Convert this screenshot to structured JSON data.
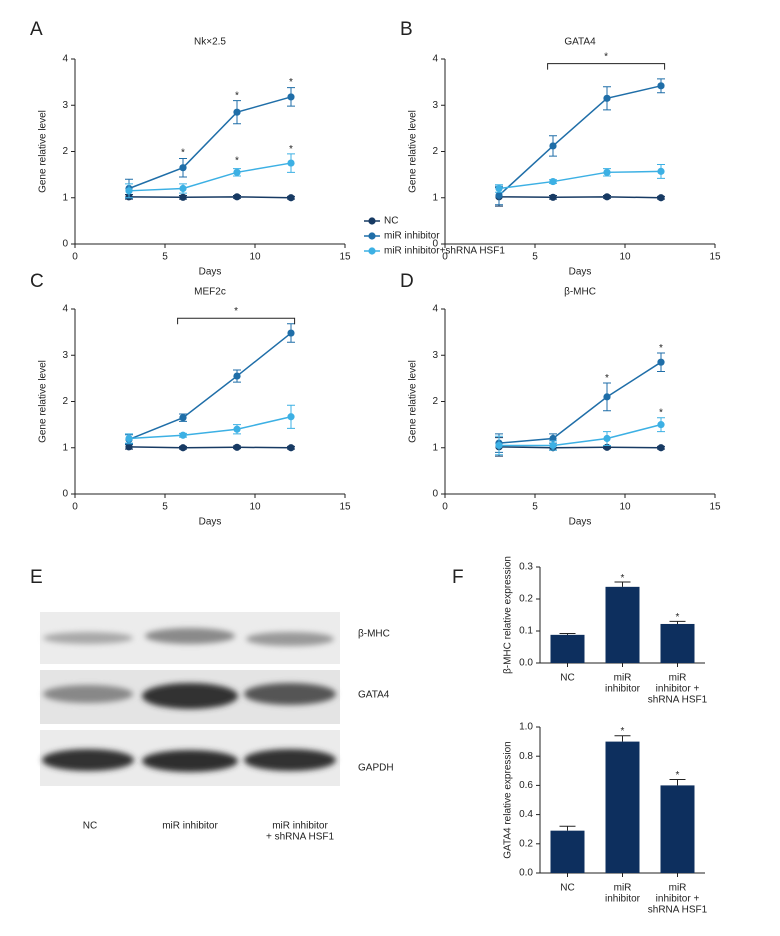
{
  "chart_data": [
    {
      "type": "line",
      "panel": "A",
      "title": "Nk×2.5",
      "x": [
        3,
        6,
        9,
        12
      ],
      "xlim": [
        0,
        15
      ],
      "xticks": [
        0,
        5,
        10,
        15
      ],
      "ylim": [
        0,
        4
      ],
      "yticks": [
        0,
        1,
        2,
        3,
        4
      ],
      "xlabel": "Days",
      "ylabel": "Gene relative level",
      "series": [
        {
          "name": "NC",
          "color": "#173a63",
          "values": [
            1.02,
            1.01,
            1.02,
            1.0
          ],
          "errors": [
            0.05,
            0.04,
            0.03,
            0.03
          ]
        },
        {
          "name": "miR inhibitor",
          "color": "#1f6ea8",
          "values": [
            1.2,
            1.65,
            2.85,
            3.18
          ],
          "errors": [
            0.2,
            0.2,
            0.25,
            0.2
          ]
        },
        {
          "name": "miR inhibitor+shRNA HSF1",
          "color": "#3cb0e4",
          "values": [
            1.15,
            1.2,
            1.55,
            1.75
          ],
          "errors": [
            0.15,
            0.1,
            0.08,
            0.2
          ]
        }
      ],
      "annotations": [
        {
          "text": "*",
          "x": 6,
          "y": 1.97
        },
        {
          "text": "*",
          "x": 9,
          "y": 3.2
        },
        {
          "text": "*",
          "x": 12,
          "y": 3.5
        },
        {
          "text": "*",
          "x": 9,
          "y": 1.8
        },
        {
          "text": "*",
          "x": 12,
          "y": 2.05
        }
      ]
    },
    {
      "type": "line",
      "panel": "B",
      "title": "GATA4",
      "x": [
        3,
        6,
        9,
        12
      ],
      "xlim": [
        0,
        15
      ],
      "xticks": [
        0,
        5,
        10,
        15
      ],
      "ylim": [
        0,
        4
      ],
      "yticks": [
        0,
        1,
        2,
        3,
        4
      ],
      "xlabel": "Days",
      "ylabel": "Gene relative level",
      "series": [
        {
          "color": "#173a63",
          "values": [
            1.02,
            1.01,
            1.02,
            1.0
          ],
          "errors": [
            0.2,
            0.04,
            0.03,
            0.03
          ]
        },
        {
          "color": "#1f6ea8",
          "values": [
            1.05,
            2.12,
            3.15,
            3.42
          ],
          "errors": [
            0.2,
            0.22,
            0.25,
            0.15
          ]
        },
        {
          "color": "#3cb0e4",
          "values": [
            1.2,
            1.35,
            1.55,
            1.57
          ],
          "errors": [
            0.08,
            0.04,
            0.08,
            0.15
          ]
        }
      ],
      "brackets": [
        {
          "text": "*",
          "x": [
            5.7,
            12.2
          ],
          "y": 3.9
        }
      ]
    },
    {
      "type": "line",
      "panel": "C",
      "title": "MEF2c",
      "x": [
        3,
        6,
        9,
        12
      ],
      "xlim": [
        0,
        15
      ],
      "xticks": [
        0,
        5,
        10,
        15
      ],
      "ylim": [
        0,
        4
      ],
      "yticks": [
        0,
        1,
        2,
        3,
        4
      ],
      "xlabel": "Days",
      "ylabel": "Gene relative level",
      "series": [
        {
          "color": "#173a63",
          "values": [
            1.02,
            1.0,
            1.01,
            1.0
          ],
          "errors": [
            0.05,
            0.03,
            0.03,
            0.03
          ]
        },
        {
          "color": "#1f6ea8",
          "values": [
            1.18,
            1.65,
            2.55,
            3.48
          ],
          "errors": [
            0.1,
            0.08,
            0.13,
            0.2
          ]
        },
        {
          "color": "#3cb0e4",
          "values": [
            1.2,
            1.27,
            1.4,
            1.67
          ],
          "errors": [
            0.1,
            0.04,
            0.1,
            0.25
          ]
        }
      ],
      "brackets": [
        {
          "text": "*",
          "x": [
            5.7,
            12.2
          ],
          "y": 3.8
        }
      ]
    },
    {
      "type": "line",
      "panel": "D",
      "title": "β-MHC",
      "x": [
        3,
        6,
        9,
        12
      ],
      "xlim": [
        0,
        15
      ],
      "xticks": [
        0,
        5,
        10,
        15
      ],
      "ylim": [
        0,
        4
      ],
      "yticks": [
        0,
        1,
        2,
        3,
        4
      ],
      "xlabel": "Days",
      "ylabel": "Gene relative level",
      "series": [
        {
          "color": "#173a63",
          "values": [
            1.02,
            1.0,
            1.01,
            1.0
          ],
          "errors": [
            0.2,
            0.05,
            0.03,
            0.03
          ]
        },
        {
          "color": "#1f6ea8",
          "values": [
            1.1,
            1.2,
            2.1,
            2.85
          ],
          "errors": [
            0.2,
            0.1,
            0.3,
            0.2
          ]
        },
        {
          "color": "#3cb0e4",
          "values": [
            1.05,
            1.05,
            1.2,
            1.5
          ],
          "errors": [
            0.2,
            0.1,
            0.15,
            0.15
          ]
        }
      ],
      "annotations": [
        {
          "text": "*",
          "x": 9,
          "y": 2.5
        },
        {
          "text": "*",
          "x": 12,
          "y": 3.15
        },
        {
          "text": "*",
          "x": 12,
          "y": 1.75
        }
      ]
    },
    {
      "type": "bar",
      "panel": "F",
      "ylabel": "β-MHC relative expression",
      "color": "#0d2f5e",
      "categories": [
        [
          "NC"
        ],
        [
          "miR",
          "inhibitor"
        ],
        [
          "miR",
          "inhibitor +",
          "shRNA HSF1"
        ]
      ],
      "values": [
        0.088,
        0.238,
        0.122
      ],
      "errors": [
        0.004,
        0.015,
        0.008
      ],
      "ylim": [
        0,
        0.3
      ],
      "yticks": [
        {
          "value": 0,
          "label": "0.0"
        },
        0.1,
        0.2,
        0.3
      ],
      "annotations": [
        {
          "text": "*",
          "index": 1,
          "y": 0.265
        },
        {
          "text": "*",
          "index": 2,
          "y": 0.142
        }
      ]
    },
    {
      "type": "bar",
      "ylabel": "GATA4 relative expression",
      "color": "#0d2f5e",
      "categories": [
        [
          "NC"
        ],
        [
          "miR",
          "inhibitor"
        ],
        [
          "miR",
          "inhibitor +",
          "shRNA HSF1"
        ]
      ],
      "values": [
        0.29,
        0.9,
        0.6
      ],
      "errors": [
        0.03,
        0.04,
        0.04
      ],
      "ylim": [
        0,
        1
      ],
      "yticks": [
        {
          "value": 0,
          "label": "0.0"
        },
        0.2,
        0.4,
        0.6,
        0.8,
        {
          "value": 1,
          "label": "1.0"
        }
      ],
      "annotations": [
        {
          "text": "*",
          "index": 1,
          "y": 0.97
        },
        {
          "text": "*",
          "index": 2,
          "y": 0.67
        }
      ]
    }
  ],
  "blot": {
    "panel": "E",
    "rows": [
      "β-MHC",
      "GATA4",
      "GAPDH"
    ],
    "lanes": [
      [
        "NC"
      ],
      [
        "miR inhibitor"
      ],
      [
        "miR inhibitor",
        "+ shRNA HSF1"
      ]
    ]
  }
}
